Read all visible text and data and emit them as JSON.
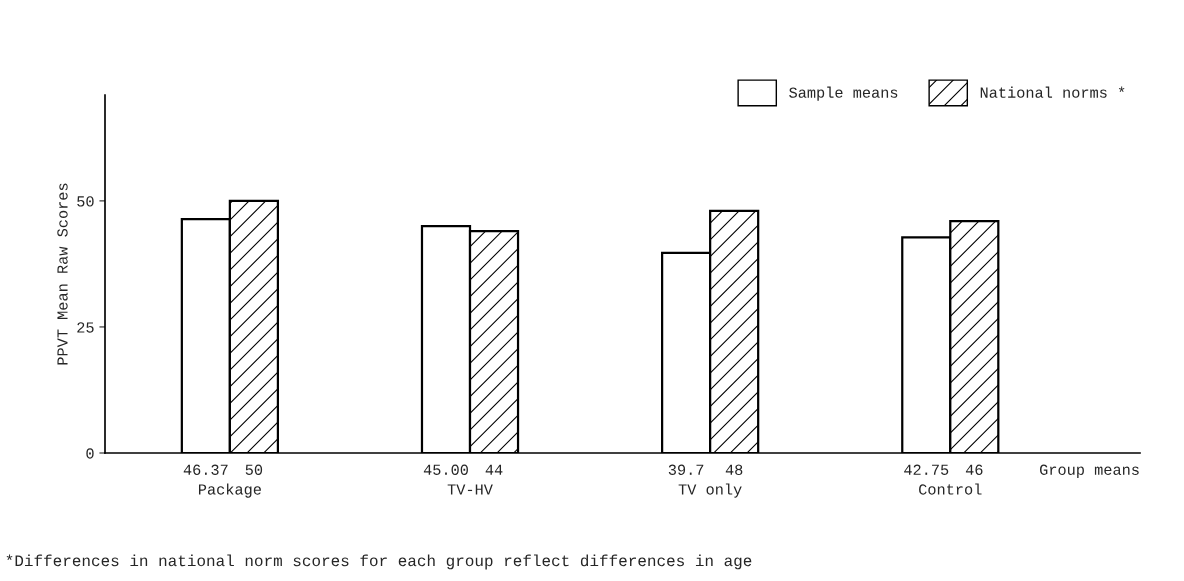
{
  "chart_data": {
    "type": "bar",
    "ylabel": "PPVT Mean Raw Scores",
    "categories": [
      "Package",
      "TV-HV",
      "TV only",
      "Control"
    ],
    "series": [
      {
        "name": "Sample means",
        "color": "#ffffff",
        "values": [
          46.37,
          45.0,
          39.7,
          42.75
        ],
        "value_labels": [
          "46.37",
          "45.00",
          "39.7",
          "42.75"
        ]
      },
      {
        "name": "National norms *",
        "color": "#000000",
        "values": [
          50,
          44,
          48,
          46
        ],
        "value_labels": [
          "50",
          "44",
          "48",
          "46"
        ]
      }
    ],
    "ylim": [
      0,
      71
    ],
    "yticks": [
      0,
      25,
      50
    ],
    "grid": false,
    "legend": "top right",
    "annotations": [
      "Group means",
      "*Differences in national norm scores for each group reflect differences in age"
    ]
  }
}
